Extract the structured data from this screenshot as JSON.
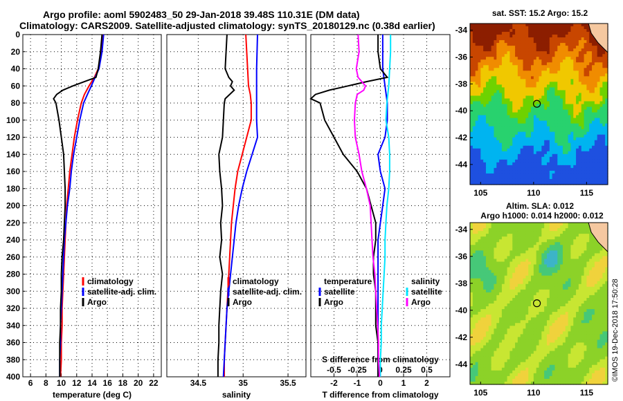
{
  "title_line1": "Argo profile: aoml 5902483_50 29-Jan-2018 39.48S 110.31E (DM data)",
  "title_line2": "Climatology: CARS2009. Satellite-adjusted climatology: synTS_20180129.nc (0.38d earlier)",
  "map_top_title": "sat. SST: 15.2 Argo: 15.2",
  "map_bottom_title1": "Altim. SLA: 0.012",
  "map_bottom_title2": "Argo h1000: 0.014 h2000: 0.012",
  "stamp": "©IMOS 19-Dec-2018 17:50:28",
  "colors": {
    "climatology": "#ff0000",
    "satellite": "#0000ff",
    "argo": "#000000",
    "sal_satellite": "#00e5ff",
    "sal_climatology": "#ff00ff"
  },
  "chart_data": [
    {
      "type": "line",
      "name": "temperature",
      "xlabel": "temperature (deg C)",
      "ylabel": "",
      "xlim": [
        5,
        23
      ],
      "ylim": [
        400,
        0
      ],
      "xticks": [
        6,
        8,
        10,
        12,
        14,
        16,
        18,
        20,
        22
      ],
      "yticks": [
        0,
        20,
        40,
        60,
        80,
        100,
        120,
        140,
        160,
        180,
        200,
        220,
        240,
        260,
        280,
        300,
        320,
        340,
        360,
        380,
        400
      ],
      "legend": [
        "climatology",
        "satellite-adj. clim.",
        "Argo"
      ],
      "series": [
        {
          "name": "climatology",
          "depth": [
            0,
            20,
            40,
            50,
            60,
            70,
            80,
            100,
            120,
            140,
            160,
            180,
            200,
            220,
            240,
            260,
            280,
            300,
            320,
            340,
            360,
            380,
            400
          ],
          "values": [
            15.4,
            15.2,
            14.8,
            14.3,
            13.6,
            13.0,
            12.6,
            12.1,
            11.7,
            11.4,
            11.1,
            10.9,
            10.7,
            10.6,
            10.5,
            10.4,
            10.3,
            10.2,
            10.1,
            10.1,
            10.0,
            10.0,
            9.9
          ]
        },
        {
          "name": "satellite-adj. clim.",
          "depth": [
            0,
            20,
            40,
            50,
            60,
            70,
            80,
            100,
            120,
            140,
            160,
            180,
            200,
            220,
            240,
            260,
            280,
            300,
            320,
            340,
            360,
            380,
            400
          ],
          "values": [
            15.5,
            15.3,
            14.9,
            14.4,
            13.9,
            13.4,
            12.9,
            12.4,
            12.0,
            11.6,
            11.3,
            11.1,
            10.8,
            10.6,
            10.4,
            10.3,
            10.2,
            10.1,
            10.0,
            9.9,
            9.9,
            9.8,
            9.8
          ]
        },
        {
          "name": "Argo",
          "depth": [
            0,
            20,
            40,
            50,
            55,
            60,
            65,
            70,
            75,
            80,
            100,
            120,
            140,
            160,
            180,
            200,
            220,
            240,
            260,
            280,
            300,
            320,
            340,
            360,
            380,
            400
          ],
          "values": [
            15.3,
            15.1,
            14.8,
            14.5,
            13.0,
            11.5,
            10.2,
            9.4,
            9.0,
            9.3,
            9.7,
            10.0,
            10.3,
            10.4,
            10.5,
            10.5,
            10.4,
            10.3,
            10.1,
            10.0,
            10.0,
            9.9,
            9.9,
            9.8,
            9.8,
            9.8
          ]
        }
      ]
    },
    {
      "type": "line",
      "name": "salinity",
      "xlabel": "salinity",
      "ylabel": "",
      "xlim": [
        34.15,
        35.7
      ],
      "ylim": [
        400,
        0
      ],
      "xticks": [
        34.5,
        35,
        35.5
      ],
      "xticklabels": [
        "34.5",
        "35",
        "35.5"
      ],
      "legend": [
        "climatology",
        "satellite-adj. clim.",
        "Argo"
      ],
      "series": [
        {
          "name": "climatology",
          "depth": [
            0,
            40,
            60,
            70,
            80,
            100,
            120,
            140,
            160,
            180,
            200,
            220,
            240,
            260,
            280,
            300,
            320,
            340,
            360,
            380,
            400
          ],
          "values": [
            35.03,
            35.05,
            35.06,
            35.08,
            35.09,
            35.09,
            35.04,
            34.99,
            34.94,
            34.91,
            34.89,
            34.87,
            34.86,
            34.85,
            34.84,
            34.83,
            34.82,
            34.81,
            34.8,
            34.79,
            34.79
          ]
        },
        {
          "name": "satellite-adj. clim.",
          "depth": [
            0,
            40,
            60,
            80,
            100,
            120,
            140,
            160,
            180,
            200,
            220,
            240,
            260,
            280,
            300,
            320,
            340,
            360,
            380,
            400
          ],
          "values": [
            35.16,
            35.15,
            35.15,
            35.15,
            35.15,
            35.16,
            35.1,
            35.04,
            34.99,
            34.95,
            34.92,
            34.9,
            34.88,
            34.86,
            34.84,
            34.82,
            34.81,
            34.8,
            34.79,
            34.78
          ]
        },
        {
          "name": "Argo",
          "depth": [
            0,
            20,
            40,
            50,
            55,
            60,
            65,
            70,
            75,
            80,
            100,
            120,
            140,
            160,
            180,
            200,
            220,
            240,
            260,
            280,
            300,
            320,
            340,
            360,
            380,
            400
          ],
          "values": [
            34.82,
            34.81,
            34.8,
            34.84,
            34.88,
            34.86,
            34.9,
            34.85,
            34.8,
            34.79,
            34.78,
            34.77,
            34.73,
            34.74,
            34.76,
            34.77,
            34.75,
            34.76,
            34.74,
            34.77,
            34.75,
            34.74,
            34.73,
            34.73,
            34.72,
            34.72
          ]
        }
      ]
    },
    {
      "type": "line",
      "name": "difference",
      "xlabel": "T difference from climatology",
      "xlabel_top": "S difference from climatology",
      "xlim": [
        -3,
        3
      ],
      "ylim": [
        400,
        0
      ],
      "xticks": [
        -2,
        -1,
        0,
        1,
        2
      ],
      "xticks_top": [
        -0.5,
        -0.25,
        0,
        0.25,
        0.5
      ],
      "xticklabels_top": [
        "-0.5",
        "-0.25",
        "0",
        "0.25",
        "0.5"
      ],
      "legend_temperature_title": "temperature",
      "legend_salinity_title": "salinity",
      "legend_temperature": [
        "satellite",
        "Argo"
      ],
      "legend_salinity": [
        "satellite",
        "Argo"
      ],
      "series": [
        {
          "name": "T satellite",
          "depth": [
            0,
            20,
            40,
            60,
            80,
            100,
            120,
            140,
            160,
            180,
            200,
            220,
            240,
            260,
            280,
            300,
            320,
            340,
            360,
            380,
            400
          ],
          "values": [
            0.1,
            0.1,
            0.1,
            0.2,
            0.3,
            0.3,
            0.2,
            -0.1,
            0.0,
            0.2,
            0.1,
            0.0,
            -0.1,
            -0.1,
            -0.1,
            -0.1,
            -0.1,
            -0.1,
            -0.1,
            -0.1,
            -0.1
          ]
        },
        {
          "name": "T Argo",
          "depth": [
            0,
            20,
            40,
            50,
            55,
            60,
            65,
            70,
            75,
            80,
            100,
            120,
            140,
            160,
            180,
            200,
            220,
            240,
            260,
            280,
            300,
            320,
            340,
            360,
            380,
            400
          ],
          "values": [
            -0.1,
            -0.1,
            0.0,
            0.3,
            -0.6,
            -1.4,
            -2.2,
            -2.8,
            -3.0,
            -2.6,
            -2.4,
            -2.0,
            -1.6,
            -1.0,
            -0.6,
            -0.4,
            -0.2,
            -0.2,
            -0.3,
            -0.3,
            -0.2,
            -0.2,
            -0.2,
            -0.1,
            -0.1,
            -0.1
          ]
        },
        {
          "name": "S satellite",
          "depth": [
            0,
            20,
            40,
            60,
            80,
            100,
            120,
            140,
            160,
            180,
            200,
            220,
            240,
            260,
            280,
            300,
            320,
            340,
            360,
            380,
            400
          ],
          "values": [
            0.11,
            0.11,
            0.1,
            0.09,
            0.07,
            0.06,
            0.09,
            0.1,
            0.1,
            0.09,
            0.07,
            0.06,
            0.05,
            0.05,
            0.04,
            0.03,
            0.02,
            0.01,
            0.01,
            0.0,
            0.0
          ]
        },
        {
          "name": "S Argo",
          "depth": [
            0,
            20,
            40,
            50,
            60,
            65,
            70,
            80,
            100,
            120,
            140,
            160,
            180,
            200,
            220,
            240,
            260,
            280,
            300,
            320,
            340,
            360,
            380,
            400
          ],
          "values": [
            -0.24,
            -0.23,
            -0.26,
            -0.24,
            -0.16,
            -0.18,
            -0.25,
            -0.27,
            -0.28,
            -0.27,
            -0.23,
            -0.2,
            -0.15,
            -0.11,
            -0.1,
            -0.09,
            -0.08,
            -0.06,
            -0.05,
            -0.04,
            -0.03,
            -0.02,
            -0.02,
            -0.01
          ]
        }
      ]
    },
    {
      "type": "heatmap",
      "name": "sst_map",
      "xlim": [
        104,
        117
      ],
      "ylim": [
        -45.5,
        -33.5
      ],
      "xticks": [
        105,
        110,
        115
      ],
      "yticks": [
        -34,
        -36,
        -38,
        -40,
        -42,
        -44
      ],
      "marker": {
        "lon": 110.31,
        "lat": -39.48
      }
    },
    {
      "type": "heatmap",
      "name": "sla_map",
      "xlim": [
        104,
        117
      ],
      "ylim": [
        -45.5,
        -33.5
      ],
      "xticks": [
        105,
        110,
        115
      ],
      "yticks": [
        -34,
        -36,
        -38,
        -40,
        -42,
        -44
      ],
      "marker": {
        "lon": 110.31,
        "lat": -39.48
      }
    }
  ]
}
